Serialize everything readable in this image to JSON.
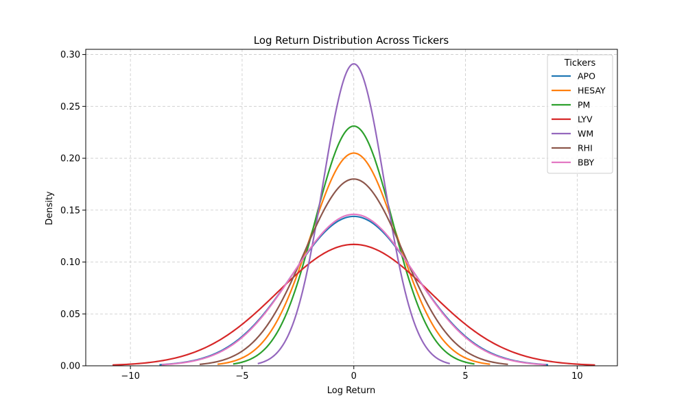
{
  "chart_data": {
    "type": "line",
    "title": "Log Return Distribution Across Tickers",
    "xlabel": "Log Return",
    "ylabel": "Density",
    "xlim": [
      -12.0,
      11.8
    ],
    "ylim": [
      0,
      0.305
    ],
    "xticks": [
      -10,
      -5,
      0,
      5,
      10
    ],
    "xtick_labels": [
      "−10",
      "−5",
      "0",
      "5",
      "10"
    ],
    "yticks": [
      0,
      0.05,
      0.1,
      0.15,
      0.2,
      0.25,
      0.3
    ],
    "ytick_labels": [
      "0.00",
      "0.05",
      "0.10",
      "0.15",
      "0.20",
      "0.25",
      "0.30"
    ],
    "grid": true,
    "legend": {
      "title": "Tickers",
      "placement": "top-right"
    },
    "series": [
      {
        "name": "APO",
        "color": "#1f77b4",
        "peak_x": 0,
        "peak_density": 0.144,
        "x_range": [
          -8.7,
          8.7
        ]
      },
      {
        "name": "HESAY",
        "color": "#ff7f0e",
        "peak_x": 0,
        "peak_density": 0.205,
        "x_range": [
          -6.1,
          6.1
        ]
      },
      {
        "name": "PM",
        "color": "#2ca02c",
        "peak_x": 0,
        "peak_density": 0.231,
        "x_range": [
          -5.4,
          5.4
        ]
      },
      {
        "name": "LYV",
        "color": "#d62728",
        "peak_x": 0,
        "peak_density": 0.117,
        "x_range": [
          -10.8,
          10.8
        ]
      },
      {
        "name": "WM",
        "color": "#9467bd",
        "peak_x": 0,
        "peak_density": 0.291,
        "x_range": [
          -4.3,
          4.3
        ]
      },
      {
        "name": "RHI",
        "color": "#8c564b",
        "peak_x": 0,
        "peak_density": 0.18,
        "x_range": [
          -6.9,
          6.9
        ]
      },
      {
        "name": "BBY",
        "color": "#e377c2",
        "peak_x": 0,
        "peak_density": 0.146,
        "x_range": [
          -8.6,
          8.6
        ]
      }
    ]
  }
}
